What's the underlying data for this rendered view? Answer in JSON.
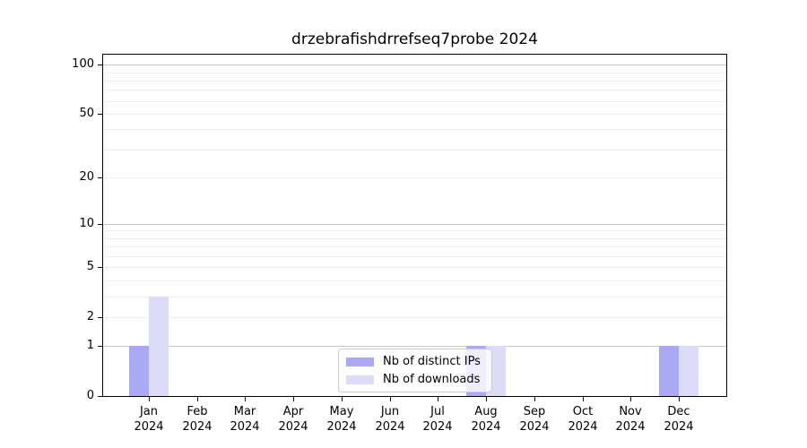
{
  "chart_data": {
    "type": "bar",
    "title": "drzebrafishdrrefseq7probe 2024",
    "categories": [
      "Jan",
      "Feb",
      "Mar",
      "Apr",
      "May",
      "Jun",
      "Jul",
      "Aug",
      "Sep",
      "Oct",
      "Nov",
      "Dec"
    ],
    "category_year": "2024",
    "series": [
      {
        "name": "Nb of distinct IPs",
        "color": "#a9a9f6",
        "values": [
          1,
          0,
          0,
          0,
          0,
          0,
          0,
          1,
          0,
          0,
          0,
          1
        ]
      },
      {
        "name": "Nb of downloads",
        "color": "#dcdcf9",
        "values": [
          3,
          0,
          0,
          0,
          0,
          0,
          0,
          1,
          0,
          0,
          0,
          1
        ]
      }
    ],
    "yscale": "log1p",
    "ylim": [
      0,
      115
    ],
    "ytick_labels": [
      0,
      1,
      2,
      5,
      10,
      20,
      50,
      100
    ],
    "grid": {
      "major_lines": [
        1,
        10,
        100
      ],
      "minor_lines": [
        2,
        3,
        4,
        5,
        6,
        7,
        8,
        9,
        20,
        30,
        40,
        50,
        60,
        70,
        80,
        90
      ],
      "major_color": "#c8c8c8",
      "minor_color": "#ededed"
    },
    "legend": {
      "position": "lower center"
    },
    "axis_color": "#000000",
    "background_color": "#ffffff"
  }
}
